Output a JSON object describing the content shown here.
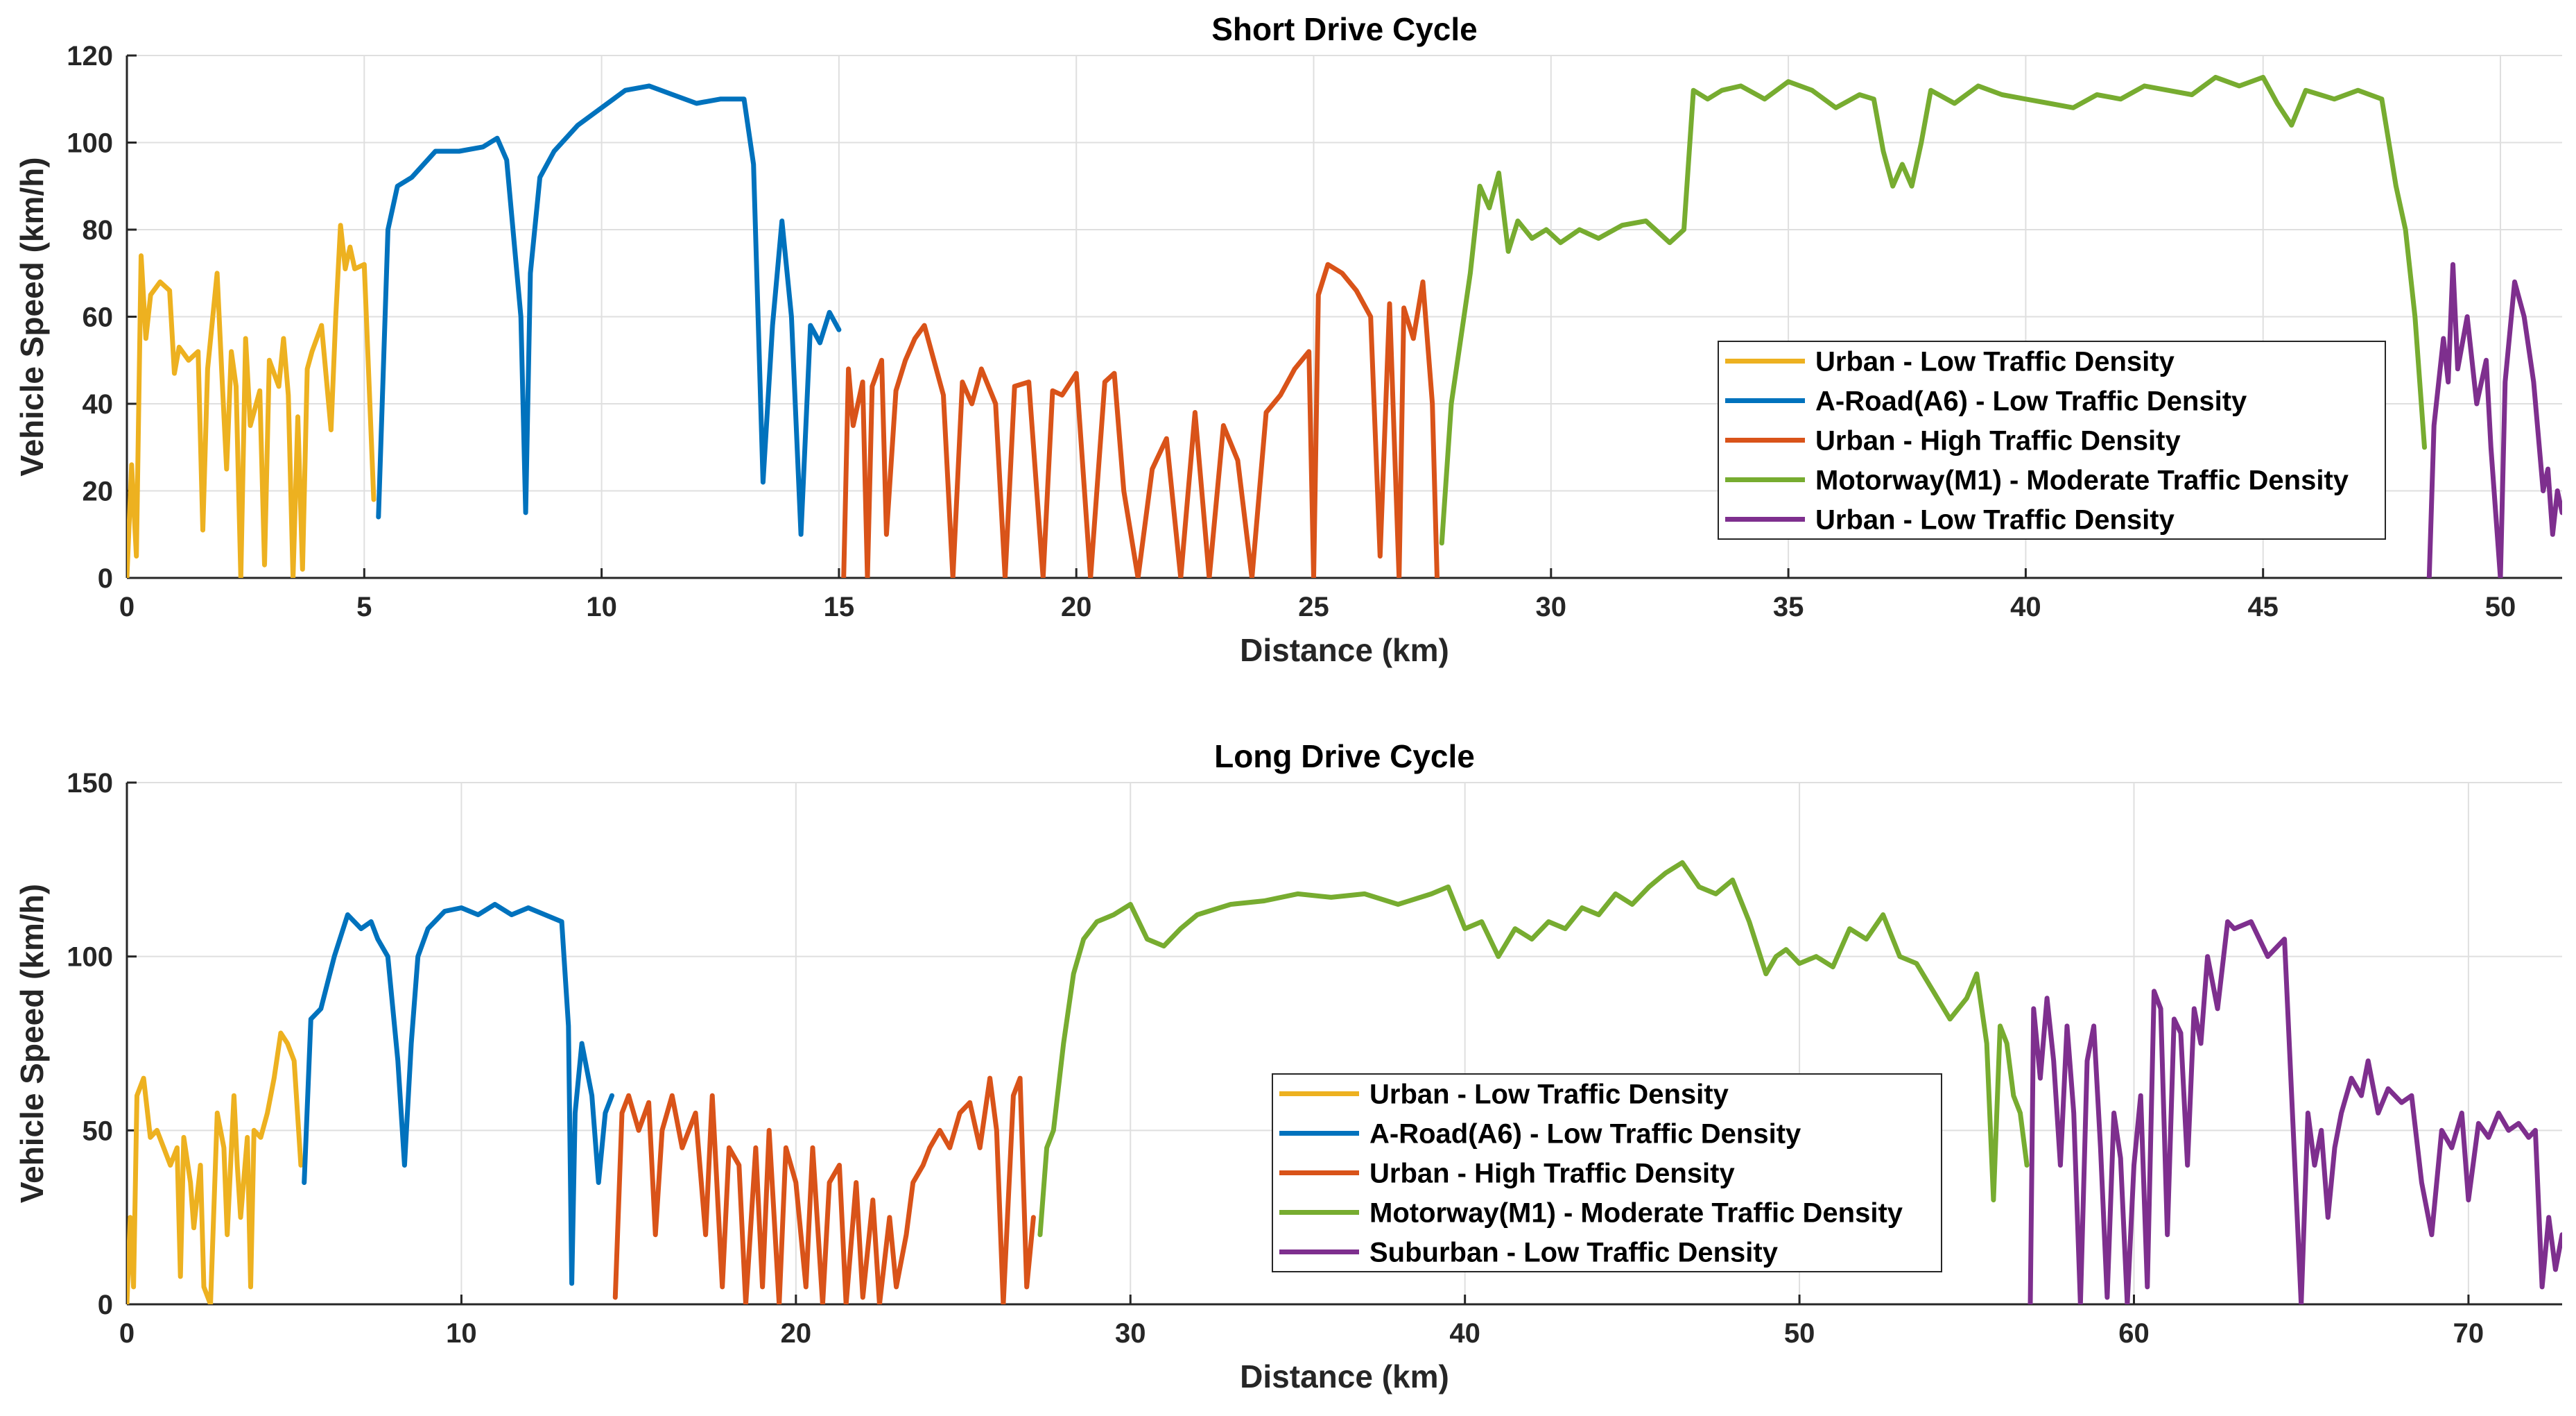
{
  "colors": {
    "urban_low": "#EDB120",
    "a_road": "#0072BD",
    "urban_high": "#D95319",
    "motorway": "#77AC30",
    "suburban": "#7E2F8E"
  },
  "chart_data": [
    {
      "type": "line",
      "title": "Short Drive Cycle",
      "xlabel": "Distance (km)",
      "ylabel": "Vehicle Speed (km/h)",
      "xlim": [
        0,
        51.3
      ],
      "ylim": [
        0,
        120
      ],
      "xticks": [
        0,
        5,
        10,
        15,
        20,
        25,
        30,
        35,
        40,
        45,
        50
      ],
      "yticks": [
        0,
        20,
        40,
        60,
        80,
        100,
        120
      ],
      "grid": true,
      "legend_position": "right",
      "series": [
        {
          "name": "Urban - Low Traffic Density",
          "color_key": "urban_low",
          "x": [
            0,
            0.1,
            0.2,
            0.3,
            0.4,
            0.5,
            0.7,
            0.9,
            1.0,
            1.1,
            1.3,
            1.5,
            1.6,
            1.7,
            1.9,
            2.0,
            2.1,
            2.2,
            2.3,
            2.4,
            2.5,
            2.6,
            2.8,
            2.9,
            3.0,
            3.2,
            3.3,
            3.4,
            3.5,
            3.6,
            3.7,
            3.8,
            3.9,
            4.1,
            4.3,
            4.4,
            4.5,
            4.6,
            4.7,
            4.8,
            5.0,
            5.2
          ],
          "y": [
            0,
            26,
            5,
            74,
            55,
            65,
            68,
            66,
            47,
            53,
            50,
            52,
            11,
            48,
            70,
            47,
            25,
            52,
            44,
            0,
            55,
            35,
            43,
            3,
            50,
            44,
            55,
            42,
            0,
            37,
            2,
            48,
            52,
            58,
            34,
            60,
            81,
            71,
            76,
            71,
            72,
            18
          ]
        },
        {
          "name": "A-Road(A6) - Low Traffic Density",
          "color_key": "a_road",
          "x": [
            5.3,
            5.5,
            5.7,
            6.0,
            6.5,
            7.0,
            7.5,
            7.8,
            8.0,
            8.3,
            8.4,
            8.5,
            8.7,
            9.0,
            9.5,
            10.0,
            10.5,
            11.0,
            11.5,
            12.0,
            12.5,
            13.0,
            13.2,
            13.4,
            13.6,
            13.8,
            14.0,
            14.2,
            14.4,
            14.6,
            14.8,
            15.0
          ],
          "y": [
            14,
            80,
            90,
            92,
            98,
            98,
            99,
            101,
            96,
            60,
            15,
            70,
            92,
            98,
            104,
            108,
            112,
            113,
            111,
            109,
            110,
            110,
            95,
            22,
            58,
            82,
            60,
            10,
            58,
            54,
            61,
            57
          ]
        },
        {
          "name": "Urban - High Traffic Density",
          "color_key": "urban_high",
          "x": [
            15.1,
            15.2,
            15.3,
            15.5,
            15.6,
            15.7,
            15.9,
            16.0,
            16.2,
            16.4,
            16.6,
            16.8,
            17.0,
            17.2,
            17.4,
            17.6,
            17.8,
            18.0,
            18.3,
            18.5,
            18.7,
            19.0,
            19.3,
            19.5,
            19.7,
            20.0,
            20.3,
            20.6,
            20.8,
            21.0,
            21.3,
            21.6,
            21.9,
            22.2,
            22.5,
            22.8,
            23.1,
            23.4,
            23.7,
            24.0,
            24.3,
            24.6,
            24.9,
            25.0,
            25.1,
            25.3,
            25.6,
            25.9,
            26.2,
            26.4,
            26.6,
            26.8,
            26.9,
            27.1,
            27.3,
            27.5,
            27.6
          ],
          "y": [
            0,
            48,
            35,
            45,
            0,
            44,
            50,
            10,
            43,
            50,
            55,
            58,
            50,
            42,
            0,
            45,
            40,
            48,
            40,
            0,
            44,
            45,
            0,
            43,
            42,
            47,
            0,
            45,
            47,
            20,
            0,
            25,
            32,
            0,
            38,
            0,
            35,
            27,
            0,
            38,
            42,
            48,
            52,
            0,
            65,
            72,
            70,
            66,
            60,
            5,
            63,
            0,
            62,
            55,
            68,
            40,
            0
          ]
        },
        {
          "name": "Motorway(M1) - Moderate Traffic Density",
          "color_key": "motorway",
          "x": [
            27.7,
            27.9,
            28.1,
            28.3,
            28.5,
            28.7,
            28.9,
            29.1,
            29.3,
            29.6,
            29.9,
            30.2,
            30.6,
            31.0,
            31.5,
            32.0,
            32.5,
            32.8,
            33.0,
            33.3,
            33.6,
            34.0,
            34.5,
            35.0,
            35.5,
            36.0,
            36.5,
            36.8,
            37.0,
            37.2,
            37.4,
            37.6,
            37.8,
            38.0,
            38.5,
            39.0,
            39.5,
            40.0,
            40.5,
            41.0,
            41.5,
            42.0,
            42.5,
            43.0,
            43.5,
            44.0,
            44.5,
            45.0,
            45.3,
            45.6,
            45.9,
            46.2,
            46.5,
            47.0,
            47.5,
            47.8,
            48.0,
            48.2,
            48.4
          ],
          "y": [
            8,
            40,
            55,
            70,
            90,
            85,
            93,
            75,
            82,
            78,
            80,
            77,
            80,
            78,
            81,
            82,
            77,
            80,
            112,
            110,
            112,
            113,
            110,
            114,
            112,
            108,
            111,
            110,
            98,
            90,
            95,
            90,
            100,
            112,
            109,
            113,
            111,
            110,
            109,
            108,
            111,
            110,
            113,
            112,
            111,
            115,
            113,
            115,
            109,
            104,
            112,
            111,
            110,
            112,
            110,
            90,
            80,
            60,
            30
          ]
        },
        {
          "name": "Urban - Low Traffic Density",
          "color_key": "suburban",
          "x": [
            48.5,
            48.6,
            48.8,
            48.9,
            49.0,
            49.1,
            49.3,
            49.5,
            49.7,
            49.8,
            50.0,
            50.1,
            50.3,
            50.5,
            50.7,
            50.9,
            51.0,
            51.1,
            51.2,
            51.3
          ],
          "y": [
            0,
            35,
            55,
            45,
            72,
            48,
            60,
            40,
            50,
            30,
            0,
            45,
            68,
            60,
            45,
            20,
            25,
            10,
            20,
            15
          ]
        }
      ]
    },
    {
      "type": "line",
      "title": "Long Drive Cycle",
      "xlabel": "Distance (km)",
      "ylabel": "Vehicle Speed (km/h)",
      "xlim": [
        0,
        72.8
      ],
      "ylim": [
        0,
        150
      ],
      "xticks": [
        0,
        10,
        20,
        30,
        40,
        50,
        60,
        70
      ],
      "yticks": [
        0,
        50,
        100,
        150
      ],
      "grid": true,
      "legend_position": "center",
      "series": [
        {
          "name": "Urban - Low Traffic Density",
          "color_key": "urban_low",
          "x": [
            0,
            0.1,
            0.2,
            0.3,
            0.5,
            0.7,
            0.9,
            1.1,
            1.3,
            1.5,
            1.6,
            1.7,
            1.9,
            2.0,
            2.2,
            2.3,
            2.5,
            2.7,
            2.9,
            3.0,
            3.2,
            3.3,
            3.4,
            3.6,
            3.7,
            3.8,
            4.0,
            4.2,
            4.4,
            4.6,
            4.8,
            5.0,
            5.2
          ],
          "y": [
            0,
            25,
            5,
            60,
            65,
            48,
            50,
            45,
            40,
            45,
            8,
            48,
            35,
            22,
            40,
            5,
            0,
            55,
            45,
            20,
            60,
            40,
            25,
            48,
            5,
            50,
            48,
            55,
            65,
            78,
            75,
            70,
            40
          ]
        },
        {
          "name": "A-Road(A6) - Low Traffic Density",
          "color_key": "a_road",
          "x": [
            5.3,
            5.5,
            5.8,
            6.2,
            6.6,
            7.0,
            7.3,
            7.5,
            7.8,
            8.1,
            8.3,
            8.5,
            8.7,
            9.0,
            9.5,
            10.0,
            10.5,
            11.0,
            11.5,
            12.0,
            12.5,
            13.0,
            13.2,
            13.3,
            13.4,
            13.6,
            13.9,
            14.1,
            14.3,
            14.5
          ],
          "y": [
            35,
            82,
            85,
            100,
            112,
            108,
            110,
            105,
            100,
            70,
            40,
            75,
            100,
            108,
            113,
            114,
            112,
            115,
            112,
            114,
            112,
            110,
            80,
            6,
            55,
            75,
            60,
            35,
            55,
            60
          ]
        },
        {
          "name": "Urban - High Traffic Density",
          "color_key": "urban_high",
          "x": [
            14.6,
            14.8,
            15.0,
            15.3,
            15.6,
            15.8,
            16.0,
            16.3,
            16.6,
            17.0,
            17.3,
            17.5,
            17.8,
            18.0,
            18.3,
            18.5,
            18.8,
            19.0,
            19.2,
            19.5,
            19.7,
            20.0,
            20.3,
            20.5,
            20.8,
            21.0,
            21.3,
            21.5,
            21.8,
            22.0,
            22.3,
            22.5,
            22.8,
            23.0,
            23.3,
            23.5,
            23.8,
            24.0,
            24.3,
            24.6,
            24.9,
            25.2,
            25.5,
            25.8,
            26.0,
            26.2,
            26.5,
            26.7,
            26.9,
            27.1
          ],
          "y": [
            2,
            55,
            60,
            50,
            58,
            20,
            50,
            60,
            45,
            55,
            20,
            60,
            5,
            45,
            40,
            0,
            45,
            5,
            50,
            0,
            45,
            35,
            5,
            45,
            0,
            35,
            40,
            0,
            35,
            2,
            30,
            0,
            25,
            5,
            20,
            35,
            40,
            45,
            50,
            45,
            55,
            58,
            45,
            65,
            50,
            0,
            60,
            65,
            5,
            25
          ]
        },
        {
          "name": "Motorway(M1) - Moderate Traffic Density",
          "color_key": "motorway",
          "x": [
            27.3,
            27.5,
            27.7,
            28.0,
            28.3,
            28.6,
            29.0,
            29.5,
            30.0,
            30.5,
            31.0,
            31.5,
            32.0,
            33.0,
            34.0,
            35.0,
            36.0,
            37.0,
            38.0,
            39.0,
            39.5,
            40.0,
            40.5,
            41.0,
            41.5,
            42.0,
            42.5,
            43.0,
            43.5,
            44.0,
            44.5,
            45.0,
            45.5,
            46.0,
            46.5,
            47.0,
            47.5,
            48.0,
            48.5,
            49.0,
            49.3,
            49.6,
            50.0,
            50.5,
            51.0,
            51.5,
            52.0,
            52.5,
            53.0,
            53.5,
            54.0,
            54.5,
            55.0,
            55.3,
            55.6,
            55.8,
            56.0,
            56.2,
            56.4,
            56.6,
            56.8
          ],
          "y": [
            20,
            45,
            50,
            75,
            95,
            105,
            110,
            112,
            115,
            105,
            103,
            108,
            112,
            115,
            116,
            118,
            117,
            118,
            115,
            118,
            120,
            108,
            110,
            100,
            108,
            105,
            110,
            108,
            114,
            112,
            118,
            115,
            120,
            124,
            127,
            120,
            118,
            122,
            110,
            95,
            100,
            102,
            98,
            100,
            97,
            108,
            105,
            112,
            100,
            98,
            90,
            82,
            88,
            95,
            75,
            30,
            80,
            75,
            60,
            55,
            40
          ]
        },
        {
          "name": "Suburban -  Low Traffic Density",
          "color_key": "suburban",
          "x": [
            56.9,
            57.0,
            57.2,
            57.4,
            57.6,
            57.8,
            58.0,
            58.2,
            58.4,
            58.6,
            58.8,
            59.0,
            59.2,
            59.4,
            59.6,
            59.8,
            60.0,
            60.2,
            60.4,
            60.6,
            60.8,
            61.0,
            61.2,
            61.4,
            61.6,
            61.8,
            62.0,
            62.2,
            62.5,
            62.8,
            63.0,
            63.5,
            64.0,
            64.5,
            65.0,
            65.2,
            65.4,
            65.6,
            65.8,
            66.0,
            66.2,
            66.5,
            66.8,
            67.0,
            67.3,
            67.6,
            68.0,
            68.3,
            68.6,
            68.9,
            69.2,
            69.5,
            69.8,
            70.0,
            70.3,
            70.6,
            70.9,
            71.2,
            71.5,
            71.8,
            72.0,
            72.2,
            72.4,
            72.6,
            72.8
          ],
          "y": [
            0,
            85,
            65,
            88,
            70,
            40,
            80,
            55,
            0,
            70,
            80,
            45,
            2,
            55,
            42,
            0,
            40,
            60,
            5,
            90,
            85,
            20,
            82,
            78,
            40,
            85,
            75,
            100,
            85,
            110,
            108,
            110,
            100,
            105,
            0,
            55,
            40,
            50,
            25,
            45,
            55,
            65,
            60,
            70,
            55,
            62,
            58,
            60,
            35,
            20,
            50,
            45,
            55,
            30,
            52,
            48,
            55,
            50,
            52,
            48,
            50,
            5,
            25,
            10,
            20
          ]
        }
      ]
    }
  ]
}
